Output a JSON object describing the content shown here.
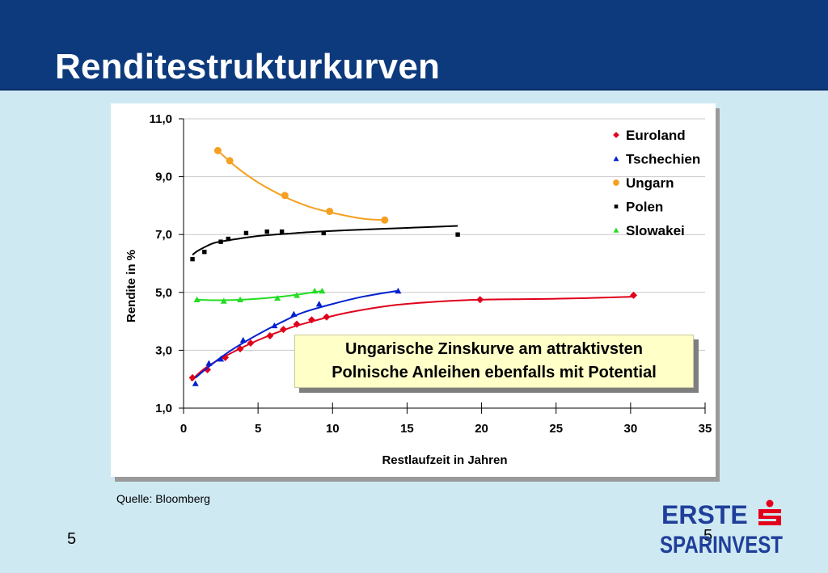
{
  "header": {
    "title": "Renditestrukturkurven"
  },
  "callout": {
    "line1": "Ungarische Zinskurve am attraktivsten",
    "line2": "Polnische Anleihen ebenfalls mit Potential"
  },
  "footer": {
    "source": "Quelle: Bloomberg",
    "page_number": "5",
    "page_number_overlay": "5",
    "logo_text_1": "ERSTE",
    "logo_text_2": "SPARINVEST"
  },
  "colors": {
    "header_bg": "#0c3a7c",
    "slide_bg": "#cfe9f3",
    "euroland": "#e0001b",
    "tschechien": "#0020d0",
    "ungarn": "#f5a020",
    "polen": "#000000",
    "slowakei": "#22dd22",
    "logo_blue": "#1f3f9a",
    "logo_red": "#e3001b"
  },
  "chart_data": {
    "type": "scatter",
    "xlabel": "Restlaufzeit in Jahren",
    "ylabel": "Rendite in %",
    "xlim": [
      0,
      35
    ],
    "ylim": [
      1,
      11
    ],
    "xticks": [
      0,
      5,
      10,
      15,
      20,
      25,
      30,
      35
    ],
    "yticks": [
      1,
      3,
      5,
      7,
      9,
      11
    ],
    "xtick_labels": [
      "0",
      "5",
      "10",
      "15",
      "20",
      "25",
      "30",
      "35"
    ],
    "ytick_labels": [
      "1,0",
      "3,0",
      "5,0",
      "7,0",
      "9,0",
      "11,0"
    ],
    "grid": "horizontal",
    "legend_position": "top-right",
    "series": [
      {
        "name": "Euroland",
        "color": "#e0001b",
        "marker": "diamond",
        "x": [
          0.6,
          1.6,
          2.8,
          3.8,
          4.5,
          5.8,
          6.7,
          7.6,
          8.6,
          9.6,
          19.9,
          30.2
        ],
        "y": [
          2.05,
          2.33,
          2.75,
          3.05,
          3.25,
          3.5,
          3.72,
          3.9,
          4.05,
          4.15,
          4.75,
          4.9
        ],
        "trend_x": [
          0.5,
          1.5,
          3,
          5,
          7,
          9,
          11,
          14,
          17,
          20,
          25,
          30.2
        ],
        "trend_y": [
          1.95,
          2.4,
          2.85,
          3.35,
          3.75,
          4.05,
          4.3,
          4.55,
          4.68,
          4.75,
          4.78,
          4.85
        ]
      },
      {
        "name": "Tschechien",
        "color": "#0020d0",
        "marker": "triangle",
        "x": [
          0.8,
          1.7,
          2.5,
          4.0,
          6.1,
          7.4,
          9.1,
          14.4
        ],
        "y": [
          1.85,
          2.55,
          2.7,
          3.35,
          3.85,
          4.25,
          4.6,
          5.05
        ],
        "trend_x": [
          0.8,
          1.5,
          2.5,
          3.5,
          5,
          6.5,
          8,
          10,
          12,
          14.3
        ],
        "trend_y": [
          2.05,
          2.35,
          2.75,
          3.1,
          3.55,
          3.95,
          4.3,
          4.6,
          4.85,
          5.05
        ]
      },
      {
        "name": "Ungarn",
        "color": "#f5a020",
        "marker": "circle",
        "x": [
          2.3,
          3.1,
          6.8,
          9.8,
          13.5
        ],
        "y": [
          9.9,
          9.55,
          8.35,
          7.8,
          7.5
        ],
        "trend_x": [
          2.3,
          3.5,
          5,
          6.8,
          8.5,
          10,
          12,
          13.5
        ],
        "trend_y": [
          9.9,
          9.35,
          8.8,
          8.3,
          7.95,
          7.75,
          7.55,
          7.5
        ]
      },
      {
        "name": "Polen",
        "color": "#000000",
        "marker": "square",
        "x": [
          0.6,
          1.4,
          2.5,
          3.0,
          4.2,
          5.6,
          6.6,
          9.4,
          18.4
        ],
        "y": [
          6.15,
          6.4,
          6.75,
          6.85,
          7.05,
          7.1,
          7.1,
          7.05,
          7.0
        ],
        "trend_x": [
          0.6,
          1,
          2,
          3,
          5,
          7,
          9,
          12,
          15,
          18.4
        ],
        "trend_y": [
          6.3,
          6.45,
          6.7,
          6.8,
          6.95,
          7.03,
          7.1,
          7.17,
          7.23,
          7.3
        ]
      },
      {
        "name": "Slowakei",
        "color": "#22dd22",
        "marker": "triangle",
        "x": [
          0.9,
          2.7,
          3.8,
          6.3,
          7.6,
          8.8,
          9.3
        ],
        "y": [
          4.75,
          4.7,
          4.75,
          4.8,
          4.9,
          5.05,
          5.05
        ],
        "trend_x": [
          0.8,
          2,
          3.5,
          5,
          6.5,
          8,
          9.3
        ],
        "trend_y": [
          4.75,
          4.73,
          4.74,
          4.78,
          4.85,
          4.95,
          5.05
        ]
      }
    ]
  }
}
